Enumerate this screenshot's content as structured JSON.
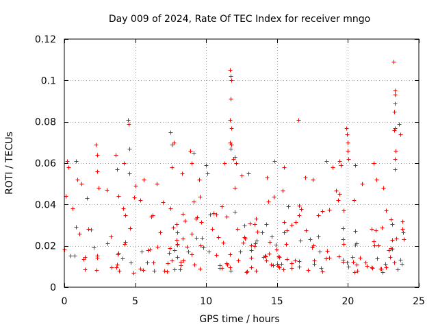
{
  "chart_data": {
    "type": "scatter",
    "title": "Day 009 of 2024, Rate Of TEC Index for receiver mngo",
    "xlabel": "GPS time / hours",
    "ylabel": "ROTI / TECUs",
    "xlim": [
      0,
      25
    ],
    "ylim": [
      0,
      0.12
    ],
    "xticks": [
      0,
      5,
      10,
      15,
      20,
      25
    ],
    "xtick_labels": [
      "0",
      "5",
      "10",
      "15",
      "20",
      "25"
    ],
    "yticks": [
      0,
      0.02,
      0.04,
      0.06,
      0.08,
      0.1,
      0.12
    ],
    "ytick_labels": [
      "0",
      "0.02",
      "0.04",
      "0.06",
      "0.08",
      "0.1",
      "0.12"
    ],
    "grid": true,
    "marker": "+",
    "marker_color": "#ff0000",
    "series": [
      {
        "name": "ROTI",
        "note": "Dense cloud of observations across 0-24 h; baseline mostly 0.005-0.03 TECU, frequent excursions to 0.04-0.06, isolated spikes listed below",
        "baseline_range": [
          0.005,
          0.03
        ],
        "points": [
          [
            0.1,
            0.044
          ],
          [
            0.2,
            0.061
          ],
          [
            0.3,
            0.058
          ],
          [
            0.8,
            0.061
          ],
          [
            0.9,
            0.052
          ],
          [
            1.6,
            0.043
          ],
          [
            2.2,
            0.069
          ],
          [
            2.3,
            0.064
          ],
          [
            2.3,
            0.056
          ],
          [
            2.4,
            0.048
          ],
          [
            3.0,
            0.047
          ],
          [
            3.6,
            0.064
          ],
          [
            3.7,
            0.057
          ],
          [
            4.2,
            0.06
          ],
          [
            4.5,
            0.081
          ],
          [
            4.55,
            0.079
          ],
          [
            4.6,
            0.067
          ],
          [
            4.6,
            0.055
          ],
          [
            5.6,
            0.052
          ],
          [
            7.5,
            0.075
          ],
          [
            7.6,
            0.069
          ],
          [
            7.7,
            0.07
          ],
          [
            7.6,
            0.058
          ],
          [
            8.3,
            0.055
          ],
          [
            8.9,
            0.066
          ],
          [
            9.0,
            0.06
          ],
          [
            9.1,
            0.065
          ],
          [
            10.0,
            0.059
          ],
          [
            10.1,
            0.055
          ],
          [
            11.3,
            0.06
          ],
          [
            11.7,
            0.105
          ],
          [
            11.75,
            0.102
          ],
          [
            11.8,
            0.1
          ],
          [
            11.75,
            0.091
          ],
          [
            11.7,
            0.081
          ],
          [
            11.8,
            0.077
          ],
          [
            11.7,
            0.07
          ],
          [
            11.8,
            0.069
          ],
          [
            11.75,
            0.067
          ],
          [
            11.9,
            0.062
          ],
          [
            12.0,
            0.063
          ],
          [
            12.1,
            0.06
          ],
          [
            12.5,
            0.054
          ],
          [
            14.8,
            0.061
          ],
          [
            15.5,
            0.058
          ],
          [
            16.5,
            0.081
          ],
          [
            17.0,
            0.053
          ],
          [
            18.5,
            0.061
          ],
          [
            18.9,
            0.058
          ],
          [
            19.4,
            0.061
          ],
          [
            19.5,
            0.059
          ],
          [
            19.9,
            0.077
          ],
          [
            19.95,
            0.074
          ],
          [
            20.0,
            0.07
          ],
          [
            20.0,
            0.066
          ],
          [
            20.05,
            0.062
          ],
          [
            20.5,
            0.059
          ],
          [
            21.8,
            0.06
          ],
          [
            22.0,
            0.052
          ],
          [
            23.2,
            0.109
          ],
          [
            23.3,
            0.095
          ],
          [
            23.3,
            0.093
          ],
          [
            23.3,
            0.089
          ],
          [
            23.25,
            0.085
          ],
          [
            23.3,
            0.077
          ],
          [
            23.25,
            0.076
          ],
          [
            23.35,
            0.066
          ],
          [
            23.3,
            0.062
          ],
          [
            23.3,
            0.057
          ],
          [
            23.6,
            0.079
          ],
          [
            23.7,
            0.074
          ],
          [
            22.5,
            0.048
          ],
          [
            21.0,
            0.05
          ],
          [
            17.5,
            0.052
          ],
          [
            13.0,
            0.055
          ],
          [
            6.5,
            0.05
          ],
          [
            5.0,
            0.049
          ],
          [
            1.2,
            0.05
          ],
          [
            9.5,
            0.052
          ],
          [
            14.3,
            0.053
          ]
        ]
      }
    ]
  }
}
